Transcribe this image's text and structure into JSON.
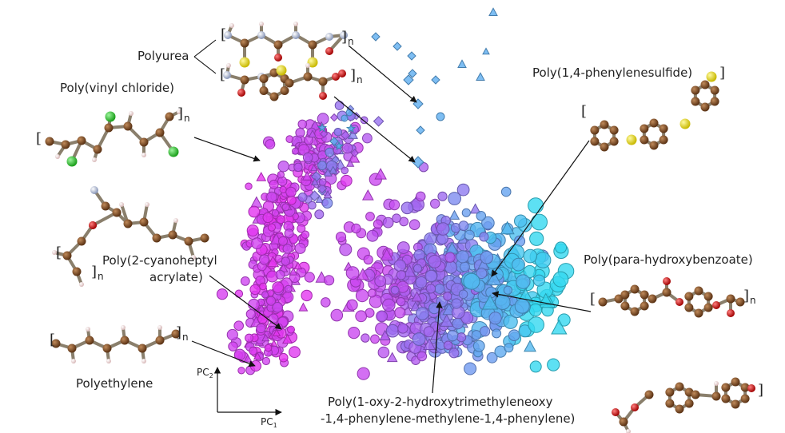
{
  "chart_data": {
    "type": "scatter",
    "title": "",
    "xlabel": "PC",
    "xlabel_sub": "1",
    "ylabel": "PC",
    "ylabel_sub": "2",
    "grid": false,
    "legend": "none",
    "color_scale": [
      "#f02cf0",
      "#9b6ef0",
      "#35d8f0"
    ],
    "marker_kinds": [
      "circle",
      "triangle",
      "diamond",
      "star"
    ],
    "annotations": [
      {
        "label": "Polyurea"
      },
      {
        "label": "Poly(vinyl chloride)"
      },
      {
        "label": "Poly(1,4-phenylenesulfide)"
      },
      {
        "label_lines": [
          "Poly(2-cyanoheptyl",
          "acrylate)"
        ]
      },
      {
        "label": "Poly(para-hydroxybenzoate)"
      },
      {
        "label": "Polyethylene"
      },
      {
        "label_lines": [
          "Poly(1-oxy-2-hydroxytrimethyleneoxy",
          "-1,4-phenylene-methylene-1,4-phenylene)"
        ]
      }
    ]
  },
  "atom_colors": {
    "carbon": "#7a4a24",
    "hydrogen": "#f2dede",
    "chlorine": "#3bd23b",
    "sulfur": "#e8e020",
    "oxygen": "#d41c1c",
    "nitrogen": "#b8c4e0"
  },
  "polymer_marks": {
    "n": "n"
  }
}
